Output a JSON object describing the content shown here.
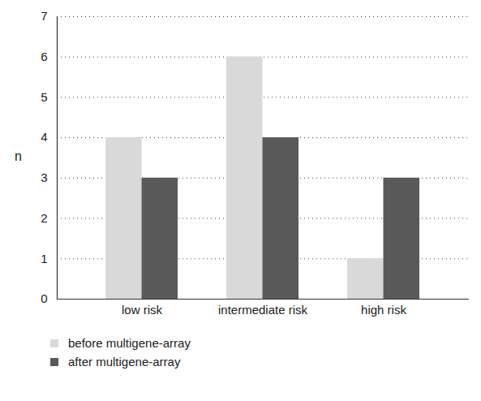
{
  "chart_data": {
    "type": "bar",
    "y_label": "n",
    "categories": [
      "low risk",
      "intermediate risk",
      "high risk"
    ],
    "series": [
      {
        "name": "before multigene-array",
        "color": "#d9d9d9",
        "values": [
          4,
          6,
          1
        ]
      },
      {
        "name": "after multigene-array",
        "color": "#595959",
        "values": [
          3,
          4,
          3
        ]
      }
    ],
    "ylim": [
      0,
      7
    ],
    "yticks": [
      0,
      1,
      2,
      3,
      4,
      5,
      6,
      7
    ],
    "grid": true,
    "legend": "bottom-left"
  }
}
